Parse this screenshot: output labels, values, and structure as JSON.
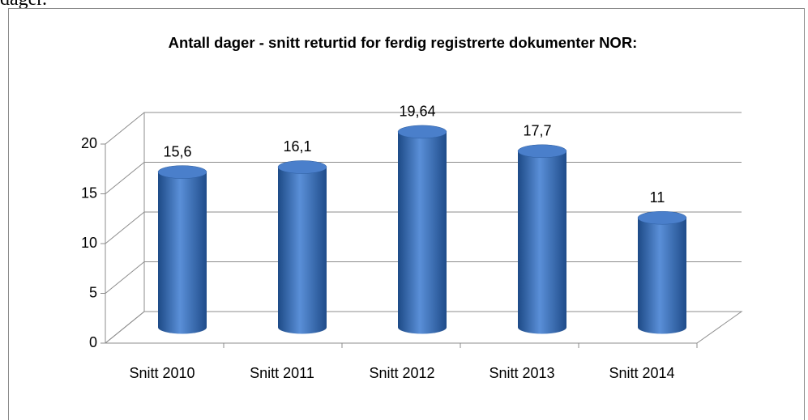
{
  "page_text": "dager.",
  "chart_data": {
    "type": "bar",
    "title": "Antall dager - snitt returtid for ferdig registrerte dokumenter NOR:",
    "categories": [
      "Snitt 2010",
      "Snitt 2011",
      "Snitt 2012",
      "Snitt 2013",
      "Snitt 2014"
    ],
    "values": [
      15.6,
      16.1,
      19.64,
      17.7,
      11
    ],
    "value_labels": [
      "15,6",
      "16,1",
      "19,64",
      "17,7",
      "11"
    ],
    "color": "#3a6fb8",
    "ylim": [
      0,
      20
    ],
    "yticks": [
      0,
      5,
      10,
      15,
      20
    ],
    "grid": true
  }
}
